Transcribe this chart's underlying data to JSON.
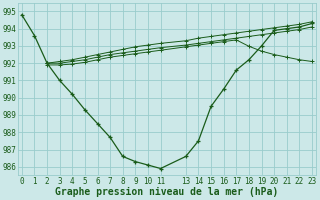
{
  "background_color": "#cce8e8",
  "grid_color": "#99cccc",
  "line_color": "#1a5c1a",
  "title": "Graphe pression niveau de la mer (hPa)",
  "ylim": [
    985.5,
    995.5
  ],
  "yticks": [
    986,
    987,
    988,
    989,
    990,
    991,
    992,
    993,
    994,
    995
  ],
  "xlim": [
    -0.3,
    23.3
  ],
  "xticks": [
    0,
    1,
    2,
    3,
    4,
    5,
    6,
    7,
    8,
    9,
    10,
    11,
    13,
    14,
    15,
    16,
    17,
    18,
    19,
    20,
    21,
    22,
    23
  ],
  "series_main": {
    "x": [
      0,
      1,
      2,
      3,
      4,
      5,
      6,
      7,
      8,
      9,
      10,
      11,
      13,
      14,
      15,
      16,
      17,
      18,
      19,
      20,
      21,
      22,
      23
    ],
    "y": [
      994.8,
      993.6,
      992.0,
      991.0,
      990.2,
      989.3,
      988.5,
      987.7,
      986.6,
      986.3,
      986.1,
      985.9,
      986.6,
      987.5,
      989.5,
      990.5,
      991.6,
      992.2,
      993.0,
      993.9,
      994.0,
      994.1,
      994.3
    ]
  },
  "series_flat": [
    {
      "x": [
        2,
        3,
        4,
        5,
        6,
        7,
        8,
        9,
        10,
        11,
        13,
        14,
        15,
        16,
        17,
        18,
        19,
        20,
        21,
        22,
        23
      ],
      "y": [
        992.0,
        992.1,
        992.2,
        992.35,
        992.5,
        992.65,
        992.8,
        992.95,
        993.05,
        993.15,
        993.3,
        993.45,
        993.55,
        993.65,
        993.75,
        993.85,
        993.95,
        994.05,
        994.15,
        994.25,
        994.4
      ]
    },
    {
      "x": [
        2,
        3,
        4,
        5,
        6,
        7,
        8,
        9,
        10,
        11,
        13,
        14,
        15,
        16,
        17,
        18,
        19,
        20,
        21,
        22,
        23
      ],
      "y": [
        992.0,
        992.0,
        992.1,
        992.2,
        992.35,
        992.5,
        992.6,
        992.7,
        992.8,
        992.9,
        993.05,
        993.15,
        993.25,
        993.35,
        993.45,
        993.55,
        993.65,
        993.75,
        993.85,
        993.95,
        994.1
      ]
    },
    {
      "x": [
        2,
        3,
        4,
        5,
        6,
        7,
        8,
        9,
        10,
        11,
        13,
        14,
        15,
        16,
        17,
        18,
        19,
        20,
        21,
        22,
        23
      ],
      "y": [
        991.9,
        991.9,
        991.95,
        992.05,
        992.2,
        992.35,
        992.45,
        992.55,
        992.65,
        992.75,
        992.95,
        993.05,
        993.15,
        993.25,
        993.35,
        992.98,
        992.7,
        992.5,
        992.35,
        992.2,
        992.1
      ]
    }
  ],
  "font_size_title": 7,
  "font_size_ticks": 5.5
}
